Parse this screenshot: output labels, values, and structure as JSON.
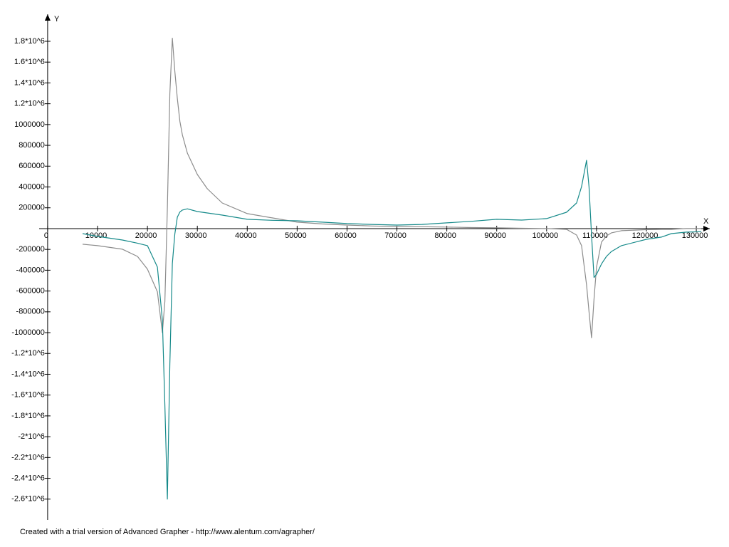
{
  "chart_data": {
    "type": "line",
    "x_label": "X",
    "y_label": "Y",
    "footer": "Created with a trial version of Advanced Grapher - http://www.alentum.com/agrapher/",
    "xlim": [
      -1700,
      132700
    ],
    "ylim": [
      -2800000,
      2060000
    ],
    "xticks": [
      0,
      10000,
      20000,
      30000,
      40000,
      50000,
      60000,
      70000,
      80000,
      90000,
      100000,
      110000,
      120000,
      130000
    ],
    "yticks": [
      {
        "value": 1800000,
        "label": "1.8*10^6"
      },
      {
        "value": 1600000,
        "label": "1.6*10^6"
      },
      {
        "value": 1400000,
        "label": "1.4*10^6"
      },
      {
        "value": 1200000,
        "label": "1.2*10^6"
      },
      1000000,
      800000,
      600000,
      400000,
      200000,
      -200000,
      -400000,
      -600000,
      -800000,
      -1000000,
      {
        "value": -1200000,
        "label": "-1.2*10^6"
      },
      {
        "value": -1400000,
        "label": "-1.4*10^6"
      },
      {
        "value": -1600000,
        "label": "-1.6*10^6"
      },
      {
        "value": -1800000,
        "label": "-1.8*10^6"
      },
      {
        "value": -2000000,
        "label": "-2*10^6"
      },
      {
        "value": -2200000,
        "label": "-2.2*10^6"
      },
      {
        "value": -2400000,
        "label": "-2.4*10^6"
      },
      {
        "value": -2600000,
        "label": "-2.6*10^6"
      }
    ],
    "grid": false,
    "x": [
      7000,
      10000,
      15000,
      18000,
      20000,
      22000,
      23000,
      23500,
      24000,
      24500,
      25000,
      25500,
      26000,
      26500,
      27000,
      28000,
      30000,
      32000,
      35000,
      40000,
      45000,
      50000,
      55000,
      60000,
      65000,
      70000,
      75000,
      80000,
      85000,
      90000,
      95000,
      100000,
      104000,
      106000,
      107000,
      108000,
      108500,
      109000,
      109500,
      110000,
      111000,
      112000,
      113000,
      115000,
      120000,
      123000,
      125000,
      128000,
      131000
    ],
    "series": [
      {
        "color": "#8c8c8c",
        "values": [
          -150000,
          -164000,
          -198000,
          -267000,
          -390000,
          -608000,
          -1000000,
          -700000,
          200000,
          1300000,
          1830000,
          1510000,
          1250000,
          1030000,
          900000,
          725000,
          520000,
          383000,
          246000,
          144000,
          103000,
          62000,
          45000,
          34000,
          25000,
          20000,
          18000,
          15000,
          10000,
          7000,
          3000,
          0,
          -7000,
          -62000,
          -164000,
          -540000,
          -800000,
          -1050000,
          -677000,
          -370000,
          -130000,
          -70000,
          -41000,
          -20000,
          -10000,
          -7000,
          -7000,
          0,
          0
        ]
      },
      {
        "color": "#168a8a",
        "values": [
          -48000,
          -75000,
          -110000,
          -140000,
          -164000,
          -370000,
          -880000,
          -1700000,
          -2600000,
          -1300000,
          -335000,
          -50000,
          110000,
          160000,
          178000,
          190000,
          164000,
          150000,
          130000,
          89000,
          80000,
          75000,
          62000,
          48000,
          40000,
          34000,
          40000,
          55000,
          70000,
          89000,
          82000,
          96000,
          157000,
          246000,
          403000,
          656000,
          400000,
          -62000,
          -470000,
          -440000,
          -340000,
          -267000,
          -220000,
          -164000,
          -103000,
          -82000,
          -48000,
          -34000,
          -30000
        ]
      }
    ]
  }
}
